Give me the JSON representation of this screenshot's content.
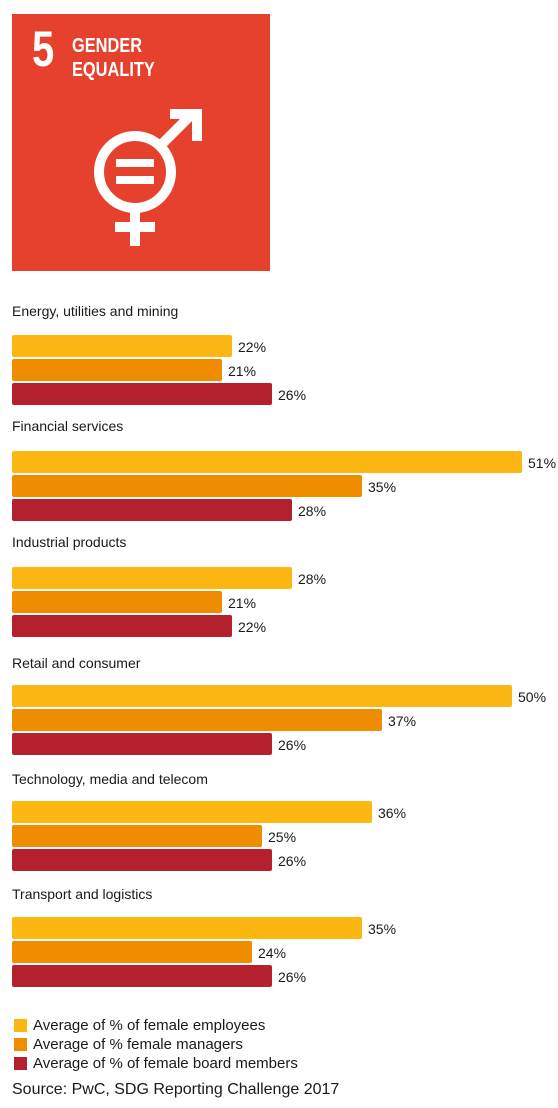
{
  "sdg": {
    "number": "5",
    "title_line1": "GENDER",
    "title_line2": "EQUALITY",
    "color": "#E5412D",
    "icon": "gender-equality-icon"
  },
  "chart_data": {
    "type": "bar",
    "orientation": "horizontal",
    "categories": [
      "Energy, utilities and mining",
      "Financial services",
      "Industrial products",
      "Retail and consumer",
      "Technology, media and telecom",
      "Transport and logistics"
    ],
    "series": [
      {
        "name": "Average of % of female employees",
        "color": "#FDB713",
        "values": [
          22,
          51,
          28,
          50,
          36,
          35
        ]
      },
      {
        "name": "Average of % female managers",
        "color": "#F08C00",
        "values": [
          21,
          35,
          21,
          37,
          25,
          24
        ]
      },
      {
        "name": "Average of % of female board members",
        "color": "#B5202E",
        "values": [
          26,
          28,
          22,
          26,
          26,
          26
        ]
      }
    ],
    "value_suffix": "%",
    "xlim": [
      0,
      51
    ],
    "grid": false,
    "legend_position": "bottom"
  },
  "source": "Source: PwC, SDG Reporting Challenge 2017"
}
